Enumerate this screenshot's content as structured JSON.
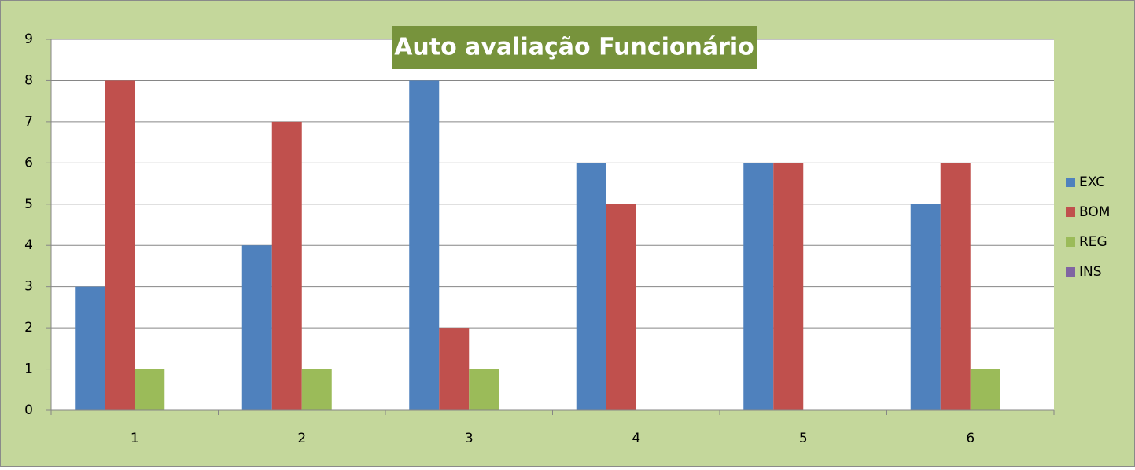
{
  "chart_data": {
    "type": "bar",
    "title": "Auto avaliação Funcionário",
    "categories": [
      "1",
      "2",
      "3",
      "4",
      "5",
      "6"
    ],
    "series": [
      {
        "name": "EXC",
        "color": "#4f81bd",
        "values": [
          3,
          4,
          8,
          6,
          6,
          5
        ]
      },
      {
        "name": "BOM",
        "color": "#c0504d",
        "values": [
          8,
          7,
          2,
          5,
          6,
          6
        ]
      },
      {
        "name": "REG",
        "color": "#9bbb59",
        "values": [
          1,
          1,
          1,
          0,
          0,
          1
        ]
      },
      {
        "name": "INS",
        "color": "#8064a2",
        "values": [
          0,
          0,
          0,
          0,
          0,
          0
        ]
      }
    ],
    "ylim": [
      0,
      9
    ],
    "yticks": [
      0,
      1,
      2,
      3,
      4,
      5,
      6,
      7,
      8,
      9
    ],
    "grid": true,
    "legend": "right"
  }
}
